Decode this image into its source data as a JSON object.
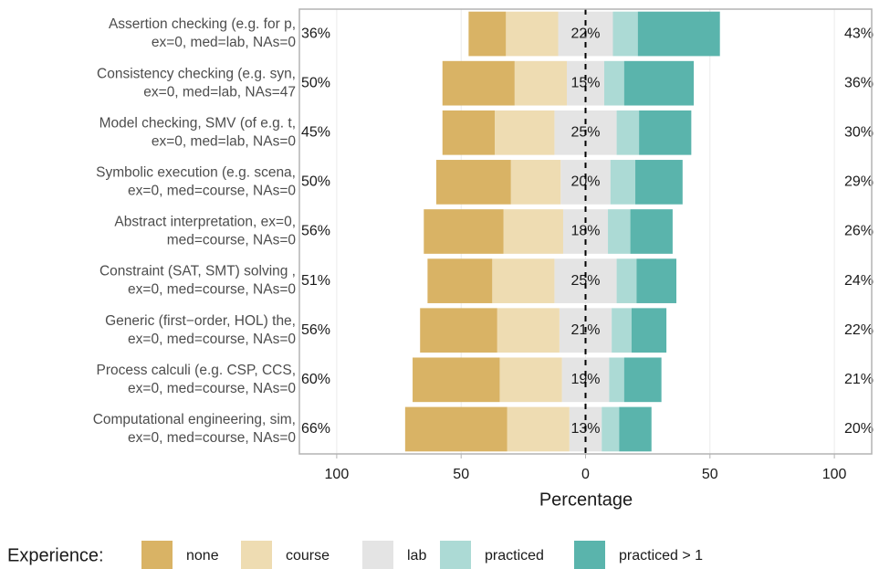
{
  "chart_data": {
    "type": "diverging_bar",
    "xlabel": "Percentage",
    "legend_title": "Experience:",
    "categories": [
      [
        "Assertion checking (e.g. for p,",
        "ex=0, med=lab, NAs=0"
      ],
      [
        "Consistency checking (e.g. syn,",
        "ex=0, med=lab, NAs=47"
      ],
      [
        "Model checking, SMV (of e.g. t,",
        "ex=0, med=lab, NAs=0"
      ],
      [
        "Symbolic execution (e.g. scena,",
        "ex=0, med=course, NAs=0"
      ],
      [
        "Abstract interpretation, ex=0,",
        "med=course, NAs=0"
      ],
      [
        "Constraint (SAT, SMT) solving ,",
        "ex=0, med=course, NAs=0"
      ],
      [
        "Generic (first−order, HOL) the,",
        "ex=0, med=course, NAs=0"
      ],
      [
        "Process calculi (e.g. CSP, CCS,",
        "ex=0, med=course, NAs=0"
      ],
      [
        "Computational engineering, sim,",
        "ex=0, med=course, NAs=0"
      ]
    ],
    "series": [
      {
        "name": "none",
        "color": "#d9b365",
        "values": [
          15,
          29,
          21,
          30,
          32,
          26,
          31,
          35,
          41
        ]
      },
      {
        "name": "course",
        "color": "#eedcb2",
        "values": [
          21,
          21,
          24,
          20,
          24,
          25,
          25,
          25,
          25
        ]
      },
      {
        "name": "lab",
        "color": "#e4e4e4",
        "values": [
          22,
          15,
          25,
          20,
          18,
          25,
          21,
          19,
          13
        ]
      },
      {
        "name": "practiced",
        "color": "#acdad5",
        "values": [
          10,
          8,
          9,
          10,
          9,
          8,
          8,
          6,
          7
        ]
      },
      {
        "name": "practiced > 1",
        "color": "#5ab4ac",
        "values": [
          33,
          28,
          21,
          19,
          17,
          16,
          14,
          15,
          13
        ]
      }
    ],
    "left_labels": [
      "36%",
      "50%",
      "45%",
      "50%",
      "56%",
      "51%",
      "56%",
      "60%",
      "66%"
    ],
    "center_labels": [
      "22%",
      "15%",
      "25%",
      "20%",
      "18%",
      "25%",
      "21%",
      "19%",
      "13%"
    ],
    "right_labels": [
      "43%",
      "36%",
      "30%",
      "29%",
      "26%",
      "24%",
      "22%",
      "21%",
      "20%"
    ],
    "xlim": [
      -115,
      115
    ],
    "xticks": [
      {
        "value": -100,
        "label": "100"
      },
      {
        "value": -50,
        "label": "50"
      },
      0,
      50,
      100
    ],
    "grid": true
  }
}
